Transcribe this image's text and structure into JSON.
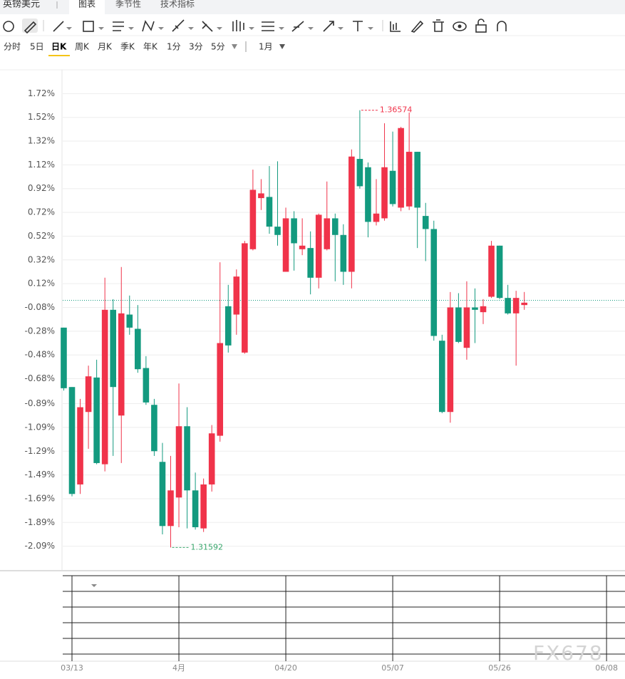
{
  "header": {
    "symbol": "英镑美元",
    "tabs": [
      "图表",
      "季节性",
      "技术指标"
    ]
  },
  "periods": [
    "分时",
    "5日",
    "日K",
    "周K",
    "月K",
    "季K",
    "年K",
    "1分",
    "3分",
    "5分",
    "1月"
  ],
  "watermark": "FX678",
  "chart_data": {
    "type": "candlestick",
    "categories": [
      null,
      "03/13",
      null,
      null,
      null,
      null,
      null,
      null,
      null,
      null,
      null,
      null,
      null,
      null,
      "4月",
      null,
      null,
      null,
      null,
      null,
      null,
      null,
      null,
      null,
      null,
      null,
      null,
      "04/20",
      null,
      null,
      null,
      null,
      null,
      null,
      null,
      null,
      null,
      null,
      null,
      null,
      "05/07",
      null,
      null,
      null,
      null,
      null,
      null,
      null,
      null,
      null,
      null,
      null,
      null,
      "05/26",
      null,
      null,
      null,
      null,
      null,
      null,
      null,
      null,
      null,
      null,
      null,
      null,
      "06/08",
      null
    ],
    "open": [
      -0.25,
      -0.75,
      -1.57,
      -0.96,
      -0.67,
      -1.4,
      -0.1,
      -0.99,
      -0.14,
      -0.26,
      -0.59,
      -0.9,
      -1.38,
      -1.92,
      -1.68,
      -1.08,
      -1.62,
      -1.94,
      -1.57,
      -1.16,
      -0.07,
      -0.14,
      -0.46,
      0.41,
      0.84,
      0.85,
      0.6,
      0.22,
      0.67,
      0.41,
      0.42,
      0.17,
      0.41,
      0.67,
      0.53,
      0.22,
      1.17,
      1.1,
      0.64,
      0.67,
      1.07,
      0.76,
      0.77,
      1.23,
      0.69,
      0.58,
      -0.36,
      -0.96,
      -0.08,
      -0.42,
      -0.08,
      -0.12,
      0.01,
      0.44,
      0.0,
      -0.13,
      -0.06,
      null,
      null,
      null,
      null,
      null,
      null,
      null,
      null,
      null,
      null,
      null
    ],
    "high": [
      -0.25,
      -0.75,
      -0.85,
      -0.57,
      -0.52,
      0.17,
      -0.01,
      0.26,
      0.02,
      -0.06,
      -0.49,
      -0.85,
      -1.22,
      -1.33,
      -0.72,
      -0.92,
      -1.47,
      -1.52,
      -1.07,
      0.3,
      0.11,
      0.24,
      0.48,
      1.08,
      1.0,
      1.11,
      1.15,
      0.76,
      0.73,
      0.67,
      0.56,
      0.71,
      0.98,
      0.71,
      0.62,
      1.25,
      1.58,
      1.14,
      1.0,
      1.47,
      1.4,
      1.44,
      1.56,
      1.23,
      0.8,
      0.65,
      -0.31,
      0.05,
      0.04,
      0.14,
      0.08,
      -0.01,
      0.48,
      0.44,
      0.11,
      0.06,
      0.05,
      null,
      null,
      null,
      null,
      null,
      null,
      null,
      null,
      null,
      null,
      null
    ],
    "low": [
      -0.78,
      -1.67,
      -1.65,
      -1.27,
      -1.4,
      -1.46,
      -1.33,
      -1.39,
      -0.31,
      -0.63,
      -0.9,
      -1.33,
      -1.99,
      -2.1,
      -1.93,
      -1.94,
      -1.95,
      -1.97,
      -1.63,
      -1.21,
      -0.46,
      -0.31,
      -0.47,
      0.4,
      0.74,
      0.54,
      0.44,
      0.22,
      0.23,
      0.36,
      0.03,
      0.08,
      0.4,
      0.14,
      0.11,
      0.08,
      0.92,
      0.51,
      0.61,
      0.65,
      0.77,
      0.73,
      0.74,
      0.42,
      0.31,
      -0.36,
      -0.97,
      -1.05,
      -0.38,
      -0.52,
      -0.38,
      -0.22,
      0.0,
      -0.01,
      -0.14,
      -0.57,
      -0.1,
      null,
      null,
      null,
      null,
      null,
      null,
      null,
      null,
      null,
      null,
      null
    ],
    "close": [
      -0.76,
      -1.65,
      -0.92,
      -0.66,
      -1.39,
      -0.1,
      -0.75,
      -0.13,
      -0.25,
      -0.6,
      -0.88,
      -1.29,
      -1.92,
      -1.62,
      -1.08,
      -1.62,
      -1.93,
      -1.57,
      -1.14,
      -0.38,
      -0.4,
      0.18,
      0.46,
      0.91,
      0.88,
      0.6,
      0.53,
      0.67,
      0.46,
      0.44,
      0.17,
      0.7,
      0.67,
      0.53,
      0.22,
      1.19,
      0.94,
      0.64,
      0.71,
      1.1,
      0.79,
      1.43,
      1.23,
      0.76,
      0.58,
      -0.32,
      -0.96,
      -0.08,
      -0.37,
      -0.08,
      -0.1,
      -0.07,
      0.44,
      0.0,
      -0.13,
      0.0,
      -0.04,
      null,
      null,
      null,
      null,
      null,
      null,
      null,
      null,
      null,
      null,
      null
    ],
    "colors": {
      "up": "#f0334a",
      "down": "#139a7f"
    },
    "last_price": -0.02,
    "annotations": [
      {
        "text": "1.36574",
        "color": "#f0334a"
      },
      {
        "text": "1.31592",
        "color": "#3aa76d"
      }
    ],
    "ylim": [
      -2.29,
      1.92
    ],
    "yticks": [
      {
        "value": 1.72,
        "label": "1.72%"
      },
      {
        "value": 1.52,
        "label": "1.52%"
      },
      {
        "value": 1.32,
        "label": "1.32%"
      },
      {
        "value": 1.12,
        "label": "1.12%"
      },
      {
        "value": 0.92,
        "label": "0.92%"
      },
      {
        "value": 0.72,
        "label": "0.72%"
      },
      {
        "value": 0.52,
        "label": "0.52%"
      },
      {
        "value": 0.32,
        "label": "0.32%"
      },
      {
        "value": 0.12,
        "label": "0.12%"
      },
      {
        "value": -0.08,
        "label": "-0.08%"
      },
      {
        "value": -0.28,
        "label": "-0.28%"
      },
      {
        "value": -0.48,
        "label": "-0.48%"
      },
      {
        "value": -0.68,
        "label": "-0.68%"
      },
      {
        "value": -0.89,
        "label": "-0.89%"
      },
      {
        "value": -1.09,
        "label": "-1.09%"
      },
      {
        "value": -1.29,
        "label": "-1.29%"
      },
      {
        "value": -1.49,
        "label": "-1.49%"
      },
      {
        "value": -1.69,
        "label": "-1.69%"
      },
      {
        "value": -1.89,
        "label": "-1.89%"
      },
      {
        "value": -2.09,
        "label": "-2.09%"
      }
    ],
    "grid": true
  }
}
